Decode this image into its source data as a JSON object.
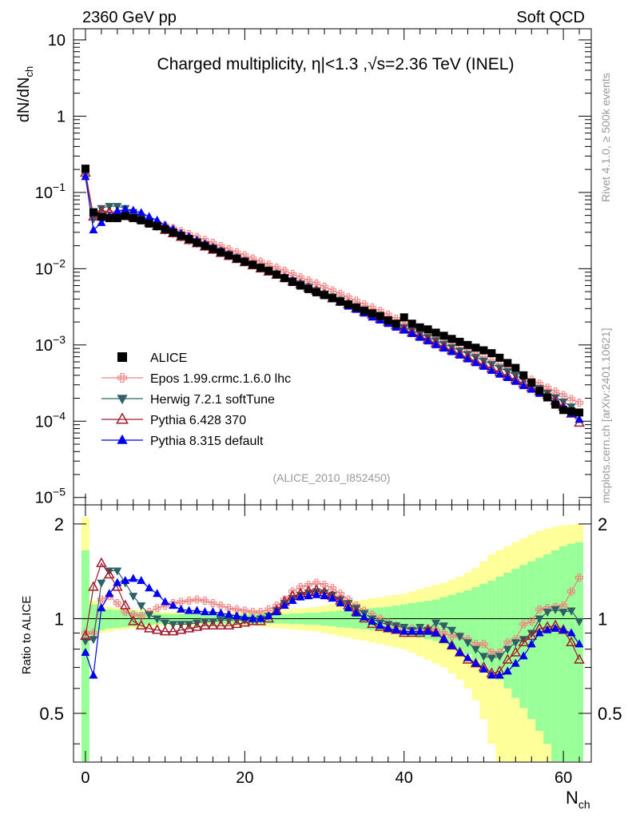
{
  "header": {
    "left": "2360 GeV pp",
    "right": "Soft QCD"
  },
  "side": {
    "rivet": "Rivet 4.1.0, ≥ 500k events",
    "mcplots": "mcplots.cern.ch [arXiv:2401.10621]"
  },
  "watermark": "(ALICE_2010_I852450)",
  "colors": {
    "alice": "#000000",
    "epos": "#f08080",
    "herwig": "#2f6065",
    "pythia6": "#a01c2c",
    "pythia8": "#0000ee",
    "band_stat": "#99ff99",
    "band_syst": "#ffff99"
  },
  "chart_data": [
    {
      "type": "scatter",
      "title": "Charged multiplicity, η|<1.3 ,√s=2.36 TeV (INEL)",
      "xlabel": "N_ch",
      "ylabel": "dN/dN_ch",
      "yscale": "log",
      "ylim": [
        8e-06,
        14
      ],
      "xlim": [
        -1.5,
        63.5
      ],
      "ytick_labels": [
        "10",
        "1",
        "10⁻¹",
        "10⁻²",
        "10⁻³",
        "10⁻⁴",
        "10⁻⁵"
      ],
      "legend_position": "lower-left",
      "x": [
        0,
        1,
        2,
        3,
        4,
        5,
        6,
        7,
        8,
        9,
        10,
        11,
        12,
        13,
        14,
        15,
        16,
        17,
        18,
        19,
        20,
        21,
        22,
        23,
        24,
        25,
        26,
        27,
        28,
        29,
        30,
        31,
        32,
        33,
        34,
        35,
        36,
        37,
        38,
        39,
        40,
        41,
        42,
        43,
        44,
        45,
        46,
        47,
        48,
        49,
        50,
        51,
        52,
        53,
        54,
        55,
        56,
        57,
        58,
        59,
        60,
        61,
        62
      ],
      "series": [
        {
          "name": "ALICE",
          "marker": "square",
          "values": [
            0.205,
            0.055,
            0.048,
            0.046,
            0.046,
            0.049,
            0.046,
            0.043,
            0.039,
            0.036,
            0.033,
            0.03,
            0.027,
            0.0245,
            0.022,
            0.02,
            0.0182,
            0.0165,
            0.015,
            0.0136,
            0.0124,
            0.0113,
            0.0103,
            0.0094,
            0.0084,
            0.0075,
            0.0067,
            0.006,
            0.0054,
            0.0049,
            0.0045,
            0.0041,
            0.0037,
            0.0034,
            0.0031,
            0.0028,
            0.0026,
            0.0024,
            0.0021,
            0.0019,
            0.0023,
            0.0019,
            0.0017,
            0.0016,
            0.00145,
            0.00132,
            0.0012,
            0.0011,
            0.001,
            0.00092,
            0.00085,
            0.00078,
            0.00068,
            0.00058,
            0.0005,
            0.0004,
            0.00032,
            0.00025,
            0.000205,
            0.000165,
            0.00014,
            0.000135,
            0.00013
          ]
        },
        {
          "name": "Epos 1.99.crmc.1.6.0 lhc",
          "marker": "cross",
          "values": [
            0.185,
            0.05,
            0.055,
            0.055,
            0.054,
            0.053,
            0.051,
            0.047,
            0.043,
            0.04,
            0.037,
            0.034,
            0.031,
            0.0285,
            0.026,
            0.0238,
            0.0218,
            0.0198,
            0.018,
            0.0164,
            0.015,
            0.0136,
            0.0124,
            0.0113,
            0.0103,
            0.0094,
            0.0085,
            0.0077,
            0.007,
            0.0064,
            0.0058,
            0.0052,
            0.0047,
            0.0042,
            0.0038,
            0.0034,
            0.0031,
            0.0028,
            0.0025,
            0.0022,
            0.002,
            0.0018,
            0.0016,
            0.00145,
            0.0013,
            0.00117,
            0.00105,
            0.00094,
            0.00084,
            0.00075,
            0.00068,
            0.00061,
            0.00055,
            0.00049,
            0.00044,
            0.00039,
            0.00035,
            0.00031,
            0.000275,
            0.000245,
            0.00022,
            0.000195,
            0.000175
          ]
        },
        {
          "name": "Herwig 7.2.1 softTune",
          "marker": "triangle-down",
          "values": [
            0.175,
            0.045,
            0.062,
            0.066,
            0.066,
            0.062,
            0.055,
            0.048,
            0.041,
            0.036,
            0.032,
            0.029,
            0.026,
            0.0236,
            0.0215,
            0.0196,
            0.0179,
            0.0163,
            0.0148,
            0.0135,
            0.0123,
            0.0112,
            0.0102,
            0.0093,
            0.0085,
            0.0077,
            0.007,
            0.0064,
            0.0058,
            0.0052,
            0.0047,
            0.0043,
            0.0039,
            0.0035,
            0.0032,
            0.0029,
            0.0026,
            0.0023,
            0.0021,
            0.0019,
            0.0017,
            0.00155,
            0.0014,
            0.00126,
            0.00114,
            0.00103,
            0.00093,
            0.00084,
            0.00076,
            0.00069,
            0.00062,
            0.00056,
            0.0005,
            0.00045,
            0.0004,
            0.00035,
            0.00031,
            0.00027,
            0.000235,
            0.000205,
            0.00018,
            0.000155,
            0.000125
          ]
        },
        {
          "name": "Pythia 6.428 370",
          "marker": "triangle-up-open",
          "values": [
            0.18,
            0.048,
            0.057,
            0.055,
            0.052,
            0.05,
            0.047,
            0.044,
            0.04,
            0.036,
            0.032,
            0.029,
            0.026,
            0.0236,
            0.0214,
            0.0194,
            0.0176,
            0.016,
            0.0146,
            0.0133,
            0.0121,
            0.011,
            0.01,
            0.0091,
            0.0083,
            0.0075,
            0.0068,
            0.0062,
            0.0056,
            0.0051,
            0.0046,
            0.0041,
            0.0037,
            0.0034,
            0.003,
            0.0027,
            0.0025,
            0.0022,
            0.002,
            0.0018,
            0.0016,
            0.00145,
            0.0013,
            0.00117,
            0.00105,
            0.00094,
            0.00085,
            0.00076,
            0.00068,
            0.00061,
            0.00055,
            0.00049,
            0.00044,
            0.00039,
            0.00035,
            0.00031,
            0.000275,
            0.000245,
            0.00022,
            0.000185,
            0.000155,
            0.000125,
            9.5e-05
          ]
        },
        {
          "name": "Pythia 8.315 default",
          "marker": "triangle-up",
          "values": [
            0.16,
            0.032,
            0.04,
            0.049,
            0.057,
            0.06,
            0.058,
            0.054,
            0.048,
            0.043,
            0.037,
            0.033,
            0.029,
            0.0262,
            0.0236,
            0.0212,
            0.019,
            0.0171,
            0.0154,
            0.0139,
            0.0125,
            0.0113,
            0.0102,
            0.0092,
            0.0083,
            0.0075,
            0.0068,
            0.0061,
            0.0055,
            0.005,
            0.0045,
            0.004,
            0.0036,
            0.0032,
            0.0029,
            0.0026,
            0.0023,
            0.0021,
            0.0019,
            0.0017,
            0.00155,
            0.0014,
            0.00125,
            0.00112,
            0.001,
            0.0009,
            0.00081,
            0.00073,
            0.00065,
            0.00058,
            0.00052,
            0.00046,
            0.00041,
            0.00037,
            0.00033,
            0.00029,
            0.00026,
            0.00023,
            0.000205,
            0.000175,
            0.00015,
            0.000125,
            0.000105
          ]
        }
      ]
    },
    {
      "type": "line",
      "ylabel": "Ratio to ALICE",
      "xlabel": "N_ch",
      "xlim": [
        -1.5,
        63.5
      ],
      "ylim": [
        0.35,
        2.3
      ],
      "yscale": "log",
      "x_ticks": [
        0,
        20,
        40,
        60
      ],
      "y_ticks": [
        0.5,
        1,
        2
      ],
      "band_x": [
        0,
        1,
        2,
        3,
        4,
        5,
        6,
        7,
        8,
        9,
        10,
        11,
        12,
        13,
        14,
        15,
        16,
        17,
        18,
        19,
        20,
        21,
        22,
        23,
        24,
        25,
        26,
        27,
        28,
        29,
        30,
        31,
        32,
        33,
        34,
        35,
        36,
        37,
        38,
        39,
        40,
        41,
        42,
        43,
        44,
        45,
        46,
        47,
        48,
        49,
        50,
        51,
        52,
        53,
        54,
        55,
        56,
        57,
        58,
        59,
        60,
        61,
        62
      ],
      "band_inner": [
        0.65,
        0.11,
        0.08,
        0.07,
        0.065,
        0.06,
        0.055,
        0.05,
        0.045,
        0.04,
        0.035,
        0.035,
        0.035,
        0.035,
        0.035,
        0.035,
        0.035,
        0.035,
        0.035,
        0.035,
        0.035,
        0.035,
        0.035,
        0.035,
        0.035,
        0.035,
        0.04,
        0.04,
        0.045,
        0.045,
        0.05,
        0.055,
        0.06,
        0.065,
        0.07,
        0.075,
        0.08,
        0.085,
        0.09,
        0.1,
        0.11,
        0.12,
        0.13,
        0.14,
        0.15,
        0.17,
        0.19,
        0.21,
        0.23,
        0.26,
        0.29,
        0.32,
        0.36,
        0.4,
        0.44,
        0.48,
        0.52,
        0.56,
        0.6,
        0.65,
        0.7,
        0.73,
        0.75
      ],
      "band_outer": [
        1.1,
        0.14,
        0.1,
        0.09,
        0.08,
        0.075,
        0.07,
        0.065,
        0.06,
        0.055,
        0.05,
        0.05,
        0.05,
        0.05,
        0.05,
        0.05,
        0.05,
        0.05,
        0.05,
        0.05,
        0.05,
        0.05,
        0.055,
        0.06,
        0.065,
        0.07,
        0.075,
        0.08,
        0.085,
        0.09,
        0.1,
        0.11,
        0.12,
        0.13,
        0.14,
        0.15,
        0.16,
        0.17,
        0.18,
        0.19,
        0.2,
        0.22,
        0.24,
        0.26,
        0.28,
        0.3,
        0.33,
        0.36,
        0.4,
        0.45,
        0.52,
        0.6,
        0.65,
        0.7,
        0.75,
        0.8,
        0.85,
        0.9,
        0.93,
        0.96,
        0.98,
        0.99,
        1.0
      ],
      "series": [
        {
          "name": "Epos 1.99.crmc.1.6.0 lhc",
          "values": [
            0.9,
            0.9,
            1.15,
            1.18,
            1.12,
            1.05,
            1.03,
            1.02,
            1.05,
            1.08,
            1.1,
            1.12,
            1.13,
            1.14,
            1.15,
            1.14,
            1.12,
            1.1,
            1.08,
            1.07,
            1.06,
            1.05,
            1.05,
            1.07,
            1.1,
            1.15,
            1.22,
            1.26,
            1.28,
            1.3,
            1.28,
            1.25,
            1.2,
            1.15,
            1.1,
            1.06,
            1.03,
            1.0,
            0.97,
            0.95,
            0.93,
            0.93,
            0.92,
            0.93,
            0.92,
            0.9,
            0.88,
            0.88,
            0.86,
            0.83,
            0.83,
            0.78,
            0.78,
            0.84,
            0.86,
            0.96,
            0.98,
            1.07,
            1.08,
            1.09,
            1.1,
            1.22,
            1.35
          ]
        },
        {
          "name": "Herwig 7.2.1 softTune",
          "values": [
            0.85,
            0.86,
            1.3,
            1.42,
            1.42,
            1.3,
            1.18,
            1.1,
            1.03,
            1.0,
            0.97,
            0.96,
            0.96,
            0.96,
            0.97,
            0.98,
            0.98,
            0.99,
            0.99,
            0.99,
            0.99,
            0.99,
            1.0,
            1.02,
            1.06,
            1.12,
            1.16,
            1.19,
            1.21,
            1.22,
            1.21,
            1.19,
            1.15,
            1.12,
            1.08,
            1.04,
            1.0,
            0.97,
            0.96,
            0.95,
            0.94,
            0.92,
            0.94,
            0.92,
            0.97,
            0.95,
            0.92,
            0.88,
            0.84,
            0.8,
            0.76,
            0.75,
            0.76,
            0.8,
            0.84,
            0.86,
            0.9,
            1.0,
            1.05,
            1.07,
            1.05,
            1.06,
            0.98
          ]
        },
        {
          "name": "Pythia 6.428 370",
          "values": [
            0.88,
            1.26,
            1.5,
            1.38,
            1.26,
            1.1,
            0.98,
            0.95,
            0.93,
            0.92,
            0.91,
            0.91,
            0.92,
            0.93,
            0.94,
            0.95,
            0.95,
            0.95,
            0.95,
            0.96,
            0.97,
            0.98,
            0.98,
            1.0,
            1.06,
            1.13,
            1.18,
            1.2,
            1.22,
            1.23,
            1.21,
            1.18,
            1.14,
            1.1,
            1.05,
            1.0,
            0.96,
            0.94,
            0.93,
            0.92,
            0.9,
            0.9,
            0.9,
            0.92,
            0.9,
            0.86,
            0.82,
            0.78,
            0.74,
            0.72,
            0.7,
            0.67,
            0.68,
            0.74,
            0.78,
            0.84,
            0.88,
            0.93,
            0.94,
            0.95,
            0.92,
            0.84,
            0.74
          ]
        },
        {
          "name": "Pythia 8.315 default",
          "values": [
            0.78,
            0.66,
            1.08,
            1.2,
            1.3,
            1.32,
            1.34,
            1.32,
            1.25,
            1.2,
            1.13,
            1.1,
            1.07,
            1.06,
            1.06,
            1.05,
            1.05,
            1.04,
            1.03,
            1.02,
            1.01,
            1.0,
            1.0,
            1.02,
            1.05,
            1.1,
            1.14,
            1.17,
            1.18,
            1.19,
            1.18,
            1.16,
            1.12,
            1.08,
            1.04,
            1.01,
            0.98,
            0.95,
            0.93,
            0.92,
            0.91,
            0.91,
            0.91,
            0.91,
            0.9,
            0.86,
            0.82,
            0.78,
            0.75,
            0.72,
            0.69,
            0.66,
            0.66,
            0.68,
            0.72,
            0.76,
            0.83,
            0.9,
            0.92,
            0.93,
            0.92,
            0.9,
            0.83
          ]
        }
      ]
    }
  ]
}
